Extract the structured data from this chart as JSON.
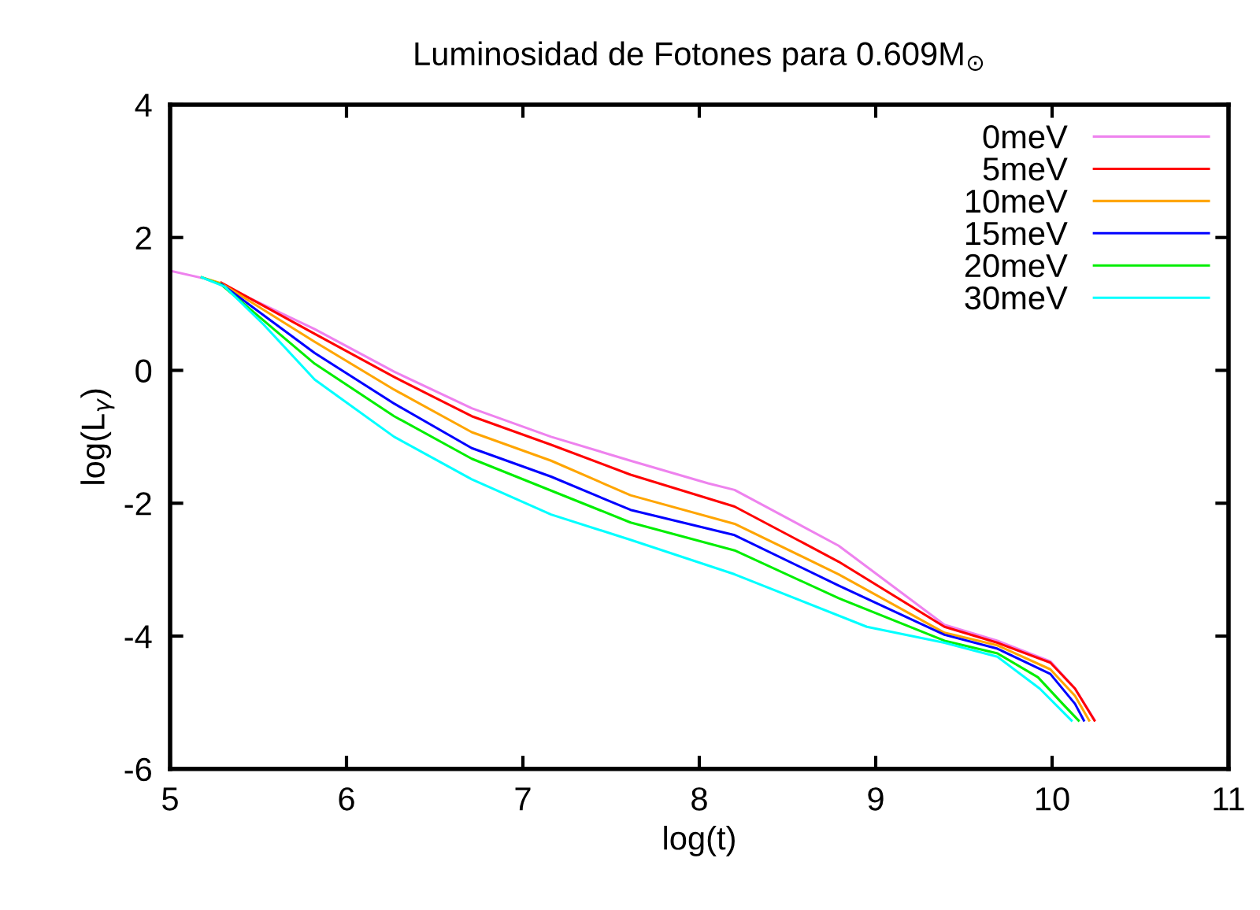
{
  "chart_data": {
    "type": "line",
    "title": "Luminosidad de Fotones para 0.609M$_{⊙}$",
    "xlabel": "log(t)",
    "ylabel": "log(L$_{γ}$)",
    "xlim": [
      5,
      11
    ],
    "ylim": [
      -6,
      4
    ],
    "xticks": [
      5,
      6,
      7,
      8,
      9,
      10,
      11
    ],
    "yticks": [
      -6,
      -4,
      -2,
      0,
      2,
      4
    ],
    "grid": false,
    "legend": "top right",
    "line_style": "solid",
    "marker": "none",
    "series": [
      {
        "name": "0meV",
        "color": "#ee82ee",
        "x": [
          5.0,
          5.2,
          5.29,
          5.82,
          6.27,
          6.71,
          7.16,
          7.61,
          8.05,
          8.2,
          8.79,
          9.39,
          9.69,
          9.99,
          10.13,
          10.24
        ],
        "values": [
          1.5,
          1.38,
          1.29,
          0.62,
          -0.02,
          -0.57,
          -1.0,
          -1.36,
          -1.7,
          -1.8,
          -2.64,
          -3.83,
          -4.07,
          -4.38,
          -4.79,
          -5.26
        ]
      },
      {
        "name": "5meV",
        "color": "#ff0000",
        "x": [
          5.29,
          5.82,
          6.27,
          6.71,
          7.16,
          7.61,
          8.2,
          8.79,
          9.39,
          9.69,
          9.99,
          10.13,
          10.24
        ],
        "values": [
          1.32,
          0.55,
          -0.1,
          -0.69,
          -1.12,
          -1.57,
          -2.05,
          -2.88,
          -3.86,
          -4.1,
          -4.4,
          -4.79,
          -5.27
        ]
      },
      {
        "name": "10meV",
        "color": "#ffa500",
        "x": [
          5.18,
          5.29,
          5.82,
          6.27,
          6.71,
          7.16,
          7.61,
          8.2,
          8.79,
          9.39,
          9.69,
          9.99,
          10.13,
          10.21
        ],
        "values": [
          1.4,
          1.31,
          0.43,
          -0.29,
          -0.93,
          -1.36,
          -1.88,
          -2.31,
          -3.07,
          -3.95,
          -4.14,
          -4.5,
          -4.9,
          -5.27
        ]
      },
      {
        "name": "15meV",
        "color": "#0000ff",
        "x": [
          5.29,
          5.82,
          6.27,
          6.71,
          7.16,
          7.61,
          8.2,
          8.79,
          9.39,
          9.69,
          9.99,
          10.13,
          10.18
        ],
        "values": [
          1.3,
          0.26,
          -0.5,
          -1.17,
          -1.6,
          -2.1,
          -2.48,
          -3.24,
          -3.98,
          -4.19,
          -4.57,
          -5.02,
          -5.27
        ]
      },
      {
        "name": "20meV",
        "color": "#00ee00",
        "x": [
          5.18,
          5.29,
          5.82,
          6.27,
          6.71,
          7.16,
          7.61,
          8.2,
          8.79,
          9.39,
          9.69,
          9.92,
          10.06,
          10.15
        ],
        "values": [
          1.4,
          1.29,
          0.1,
          -0.69,
          -1.33,
          -1.81,
          -2.29,
          -2.71,
          -3.43,
          -4.07,
          -4.26,
          -4.62,
          -5.02,
          -5.27
        ]
      },
      {
        "name": "30meV",
        "color": "#00ffff",
        "x": [
          5.18,
          5.31,
          5.53,
          5.82,
          6.27,
          6.71,
          7.16,
          7.61,
          8.2,
          8.95,
          9.39,
          9.69,
          9.93,
          10.11
        ],
        "values": [
          1.4,
          1.26,
          0.69,
          -0.14,
          -1.0,
          -1.64,
          -2.17,
          -2.55,
          -3.07,
          -3.86,
          -4.1,
          -4.31,
          -4.79,
          -5.27
        ]
      }
    ]
  }
}
